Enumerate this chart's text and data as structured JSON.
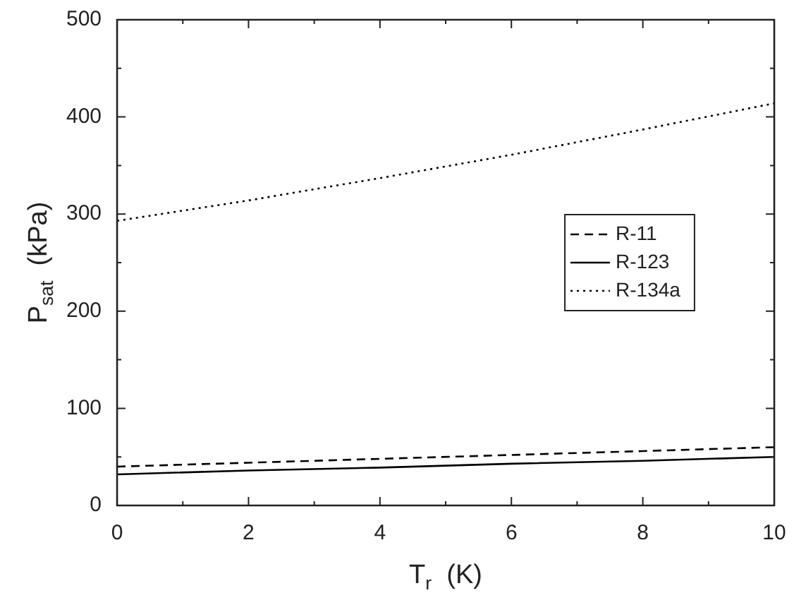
{
  "chart_data": {
    "type": "line",
    "xlabel": "T$_{r}$  (K)",
    "ylabel": "P$_{sat}$  (kPa)",
    "x": [
      0,
      2,
      4,
      6,
      8,
      10
    ],
    "series": [
      {
        "name": "R-11",
        "color": "#000000",
        "line_style": "dashed",
        "values": [
          40,
          44,
          48,
          52,
          56,
          60
        ]
      },
      {
        "name": "R-123",
        "color": "#000000",
        "line_style": "solid",
        "values": [
          32,
          36,
          39,
          43,
          46,
          50
        ]
      },
      {
        "name": "R-134a",
        "color": "#000000",
        "line_style": "dotted",
        "values": [
          293,
          314,
          337,
          361,
          387,
          414
        ]
      }
    ],
    "xlim": [
      0,
      10
    ],
    "xticks": [
      0,
      2,
      4,
      6,
      8,
      10
    ],
    "ylim": [
      0,
      500
    ],
    "yticks": [
      0,
      100,
      200,
      300,
      400,
      500
    ],
    "grid": false,
    "legend": "right",
    "marker": "none"
  }
}
